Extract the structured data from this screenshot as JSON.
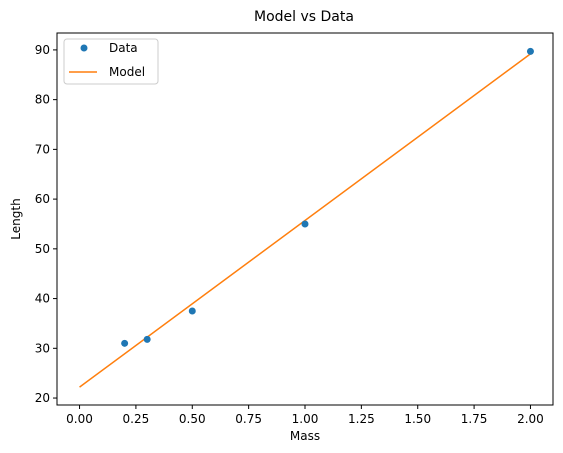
{
  "chart_data": {
    "type": "scatter",
    "title": "Model vs Data",
    "xlabel": "Mass",
    "ylabel": "Length",
    "xlim": [
      -0.1,
      2.1
    ],
    "ylim": [
      18.6,
      93.4
    ],
    "xticks": [
      0.0,
      0.25,
      0.5,
      0.75,
      1.0,
      1.25,
      1.5,
      1.75,
      2.0
    ],
    "xtick_labels": [
      "0.00",
      "0.25",
      "0.50",
      "0.75",
      "1.00",
      "1.25",
      "1.50",
      "1.75",
      "2.00"
    ],
    "yticks": [
      20,
      30,
      40,
      50,
      60,
      70,
      80,
      90
    ],
    "ytick_labels": [
      "20",
      "30",
      "40",
      "50",
      "60",
      "70",
      "80",
      "90"
    ],
    "grid": false,
    "legend": "top-left",
    "series": [
      {
        "name": "Data",
        "kind": "scatter",
        "color": "#1f77b4",
        "x": [
          0.2,
          0.3,
          0.5,
          1.0,
          2.0
        ],
        "y": [
          31.0,
          31.8,
          37.5,
          55.0,
          89.7
        ]
      },
      {
        "name": "Model",
        "kind": "line",
        "color": "#ff7f0e",
        "x": [
          0.0,
          2.0
        ],
        "y": [
          22.2,
          89.2
        ]
      }
    ]
  }
}
